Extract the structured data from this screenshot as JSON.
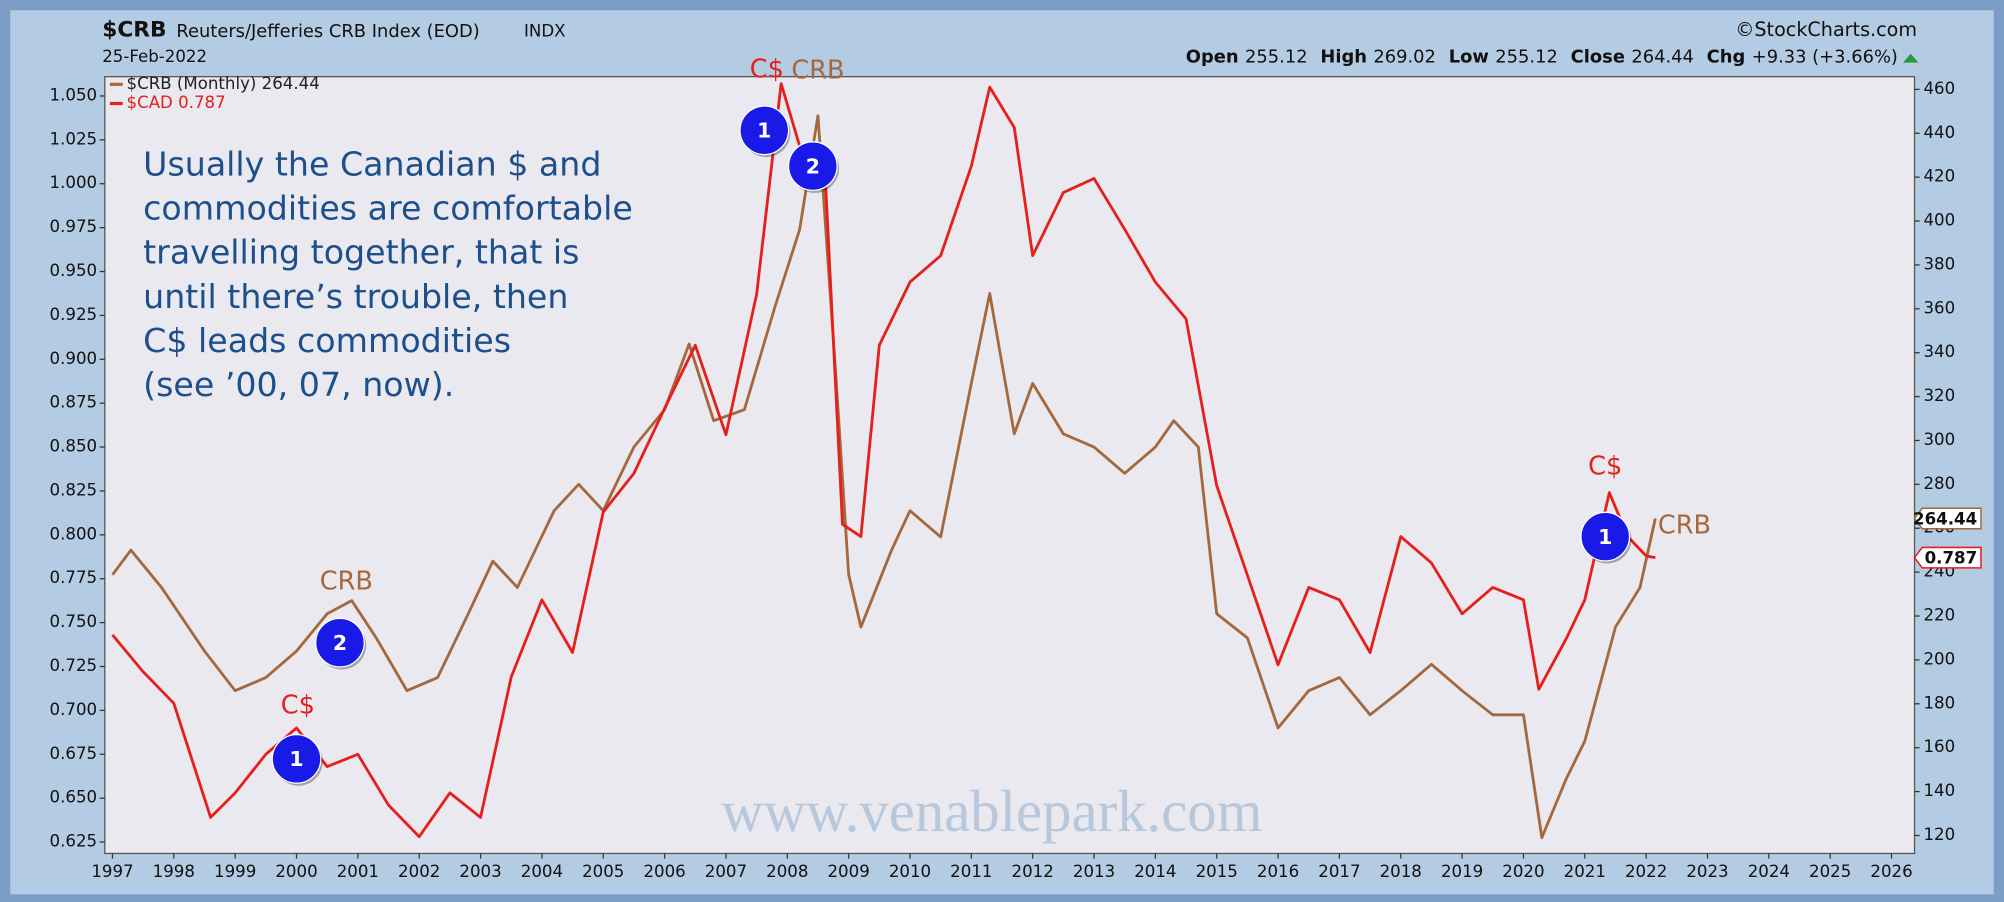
{
  "header": {
    "symbol": "$CRB",
    "name": "Reuters/Jefferies CRB Index (EOD)",
    "exchange": "INDX",
    "date": "25-Feb-2022",
    "source": "©StockCharts.com",
    "quote": [
      {
        "label": "Open",
        "value": 255.12
      },
      {
        "label": "High",
        "value": 269.02
      },
      {
        "label": "Low",
        "value": 255.12
      },
      {
        "label": "Close",
        "value": 264.44
      },
      {
        "label": "Chg",
        "value": "+9.33 (+3.66%)"
      }
    ]
  },
  "chart_data": {
    "type": "line",
    "xlim": [
      1996.875,
      2026.375
    ],
    "xticks": [
      1997,
      1998,
      1999,
      2000,
      2001,
      2002,
      2003,
      2004,
      2005,
      2006,
      2007,
      2008,
      2009,
      2010,
      2011,
      2012,
      2013,
      2014,
      2015,
      2016,
      2017,
      2018,
      2019,
      2020,
      2021,
      2022,
      2023,
      2024,
      2025,
      2026
    ],
    "ylim": [
      0.6185,
      1.061
    ],
    "yticks": [
      {
        "value": 0.625,
        "label": "0.625"
      },
      {
        "value": 0.65,
        "label": "0.650"
      },
      {
        "value": 0.675,
        "label": "0.675"
      },
      {
        "value": 0.7,
        "label": "0.700"
      },
      {
        "value": 0.725,
        "label": "0.725"
      },
      {
        "value": 0.75,
        "label": "0.750"
      },
      {
        "value": 0.775,
        "label": "0.775"
      },
      {
        "value": 0.8,
        "label": "0.800"
      },
      {
        "value": 0.825,
        "label": "0.825"
      },
      {
        "value": 0.85,
        "label": "0.850"
      },
      {
        "value": 0.875,
        "label": "0.875"
      },
      {
        "value": 0.9,
        "label": "0.900"
      },
      {
        "value": 0.925,
        "label": "0.925"
      },
      {
        "value": 0.95,
        "label": "0.950"
      },
      {
        "value": 0.975,
        "label": "0.975"
      },
      {
        "value": 1.0,
        "label": "1.000"
      },
      {
        "value": 1.025,
        "label": "1.025"
      },
      {
        "value": 1.05,
        "label": "1.050"
      }
    ],
    "y2lim": [
      111.8,
      465.8
    ],
    "y2ticks": [
      120,
      140,
      160,
      180,
      200,
      220,
      240,
      260,
      280,
      300,
      320,
      340,
      360,
      380,
      400,
      420,
      440,
      460
    ],
    "series": [
      {
        "name": "$CRB (Monthly) 264.44",
        "color": "#a5683c",
        "axis": "y2",
        "x": [
          1997.0,
          1997.3,
          1997.8,
          1998.5,
          1999.0,
          1999.5,
          2000.0,
          2000.5,
          2000.9,
          2001.3,
          2001.8,
          2002.3,
          2002.8,
          2003.2,
          2003.6,
          2004.2,
          2004.6,
          2005.0,
          2005.5,
          2006.0,
          2006.4,
          2006.8,
          2007.3,
          2007.8,
          2008.2,
          2008.5,
          2008.8,
          2009.0,
          2009.2,
          2009.7,
          2010.0,
          2010.5,
          2011.0,
          2011.3,
          2011.7,
          2012.0,
          2012.5,
          2013.0,
          2013.5,
          2014.0,
          2014.3,
          2014.7,
          2015.0,
          2015.5,
          2016.0,
          2016.5,
          2017.0,
          2017.5,
          2018.0,
          2018.5,
          2019.0,
          2019.5,
          2020.0,
          2020.3,
          2020.7,
          2021.0,
          2021.5,
          2021.9,
          2022.15
        ],
        "values": [
          238.8,
          250,
          233,
          204,
          186,
          192,
          204,
          221,
          227,
          210,
          186,
          192,
          221,
          245,
          233,
          268,
          280,
          268,
          297,
          314,
          344,
          309,
          314,
          361,
          396,
          448,
          326,
          239,
          215,
          250,
          268,
          256,
          326,
          367,
          303,
          326,
          303,
          297,
          285,
          297,
          309,
          297,
          221,
          210,
          169,
          186,
          192,
          175,
          186,
          198,
          186,
          175,
          175,
          119,
          146,
          163,
          215,
          233,
          264.44
        ]
      },
      {
        "name": "$CAD 0.787",
        "color": "#e5201c",
        "axis": "y",
        "x": [
          1997.0,
          1997.5,
          1998.0,
          1998.6,
          1999.0,
          1999.5,
          2000.0,
          2000.5,
          2001.0,
          2001.5,
          2002.0,
          2002.5,
          2003.0,
          2003.5,
          2004.0,
          2004.5,
          2005.0,
          2005.5,
          2006.0,
          2006.5,
          2007.0,
          2007.5,
          2007.9,
          2008.3,
          2008.6,
          2008.9,
          2009.2,
          2009.5,
          2010.0,
          2010.5,
          2011.0,
          2011.3,
          2011.7,
          2012.0,
          2012.5,
          2013.0,
          2013.5,
          2014.0,
          2014.5,
          2015.0,
          2015.5,
          2016.0,
          2016.5,
          2017.0,
          2017.5,
          2018.0,
          2018.5,
          2019.0,
          2019.5,
          2020.0,
          2020.25,
          2020.7,
          2021.0,
          2021.4,
          2021.7,
          2022.0,
          2022.15
        ],
        "values": [
          0.743,
          0.722,
          0.704,
          0.639,
          0.653,
          0.675,
          0.69,
          0.668,
          0.675,
          0.646,
          0.628,
          0.653,
          0.639,
          0.719,
          0.763,
          0.733,
          0.813,
          0.835,
          0.872,
          0.908,
          0.857,
          0.937,
          1.057,
          1.01,
          1.017,
          0.806,
          0.799,
          0.908,
          0.944,
          0.959,
          1.01,
          1.055,
          1.032,
          0.959,
          0.995,
          1.003,
          0.974,
          0.944,
          0.923,
          0.828,
          0.777,
          0.726,
          0.77,
          0.763,
          0.733,
          0.799,
          0.784,
          0.755,
          0.77,
          0.763,
          0.712,
          0.741,
          0.763,
          0.824,
          0.799,
          0.788,
          0.787
        ]
      }
    ],
    "note": [
      "Usually the Canadian $ and",
      "commodities are comfortable",
      "travelling together, that is",
      "until there’s trouble, then",
      "C$ leads commodities",
      "(see ’00, 07, now)."
    ],
    "labels": [
      "C$",
      "CRB",
      "CRB",
      "C$",
      "C$",
      "CRB"
    ],
    "markers": [
      "1",
      "2",
      "2",
      "1",
      "1"
    ],
    "watermark": "www.venablepark.com"
  }
}
